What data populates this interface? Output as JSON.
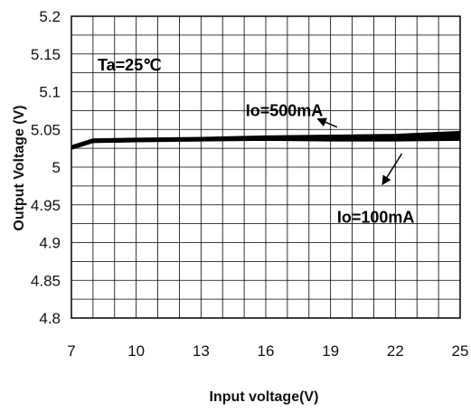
{
  "chart_data": {
    "type": "line",
    "title": "",
    "xlabel": "Input voltage(V)",
    "ylabel": "Output Voltage (V)",
    "xlim": [
      7,
      25
    ],
    "ylim": [
      4.8,
      5.2
    ],
    "xticks": [
      7,
      10,
      13,
      16,
      19,
      22,
      25
    ],
    "yticks": [
      4.8,
      4.85,
      4.9,
      4.95,
      5,
      5.05,
      5.1,
      5.15,
      5.2
    ],
    "xtick_labels": [
      "7",
      "10",
      "13",
      "16",
      "19",
      "22",
      "25"
    ],
    "ytick_labels": [
      "4.8",
      "4.85",
      "4.9",
      "4.95",
      "5",
      "5.05",
      "5.1",
      "5.15",
      "5.2"
    ],
    "grid": true,
    "legend": "none",
    "series_color": "#000000",
    "series": [
      {
        "x": [
          7,
          8,
          10,
          13,
          16,
          19,
          22,
          25
        ],
        "y": [
          5.027,
          5.036,
          5.037,
          5.038,
          5.04,
          5.041,
          5.042,
          5.046
        ]
      },
      {
        "x": [
          7,
          8,
          10,
          13,
          16,
          19,
          22,
          25
        ],
        "y": [
          5.025,
          5.034,
          5.035,
          5.036,
          5.037,
          5.036,
          5.036,
          5.037
        ]
      }
    ],
    "annotations": [
      {
        "text": "Ta=25℃"
      },
      {
        "text": "Io=500mA",
        "x": 18,
        "y": 5.076,
        "arrow_to": [
          19.3,
          5.053
        ]
      },
      {
        "text": "Io=100mA",
        "x": 19.3,
        "y": 4.935,
        "arrow_to": [
          21.4,
          4.977
        ]
      }
    ]
  }
}
